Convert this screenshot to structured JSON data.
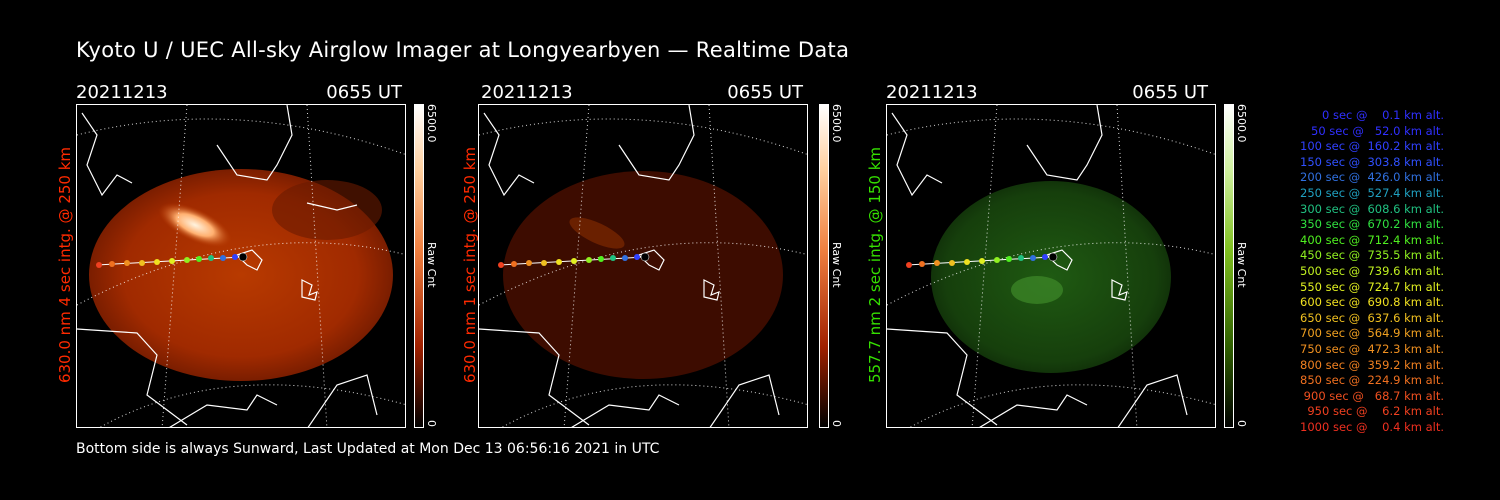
{
  "title": "Kyoto U / UEC All-sky Airglow Imager at Longyearbyen — Realtime Data",
  "panels": [
    {
      "date": "20211213",
      "time": "0655 UT",
      "side_label": "630.0 nm 4 sec intg. @ 250 km",
      "label_color": "#ff2a00",
      "cbar_max": "6500.0",
      "cbar_unit": "Raw Cnt",
      "cbar_min": "0",
      "image_tint": "#c43000",
      "image_intensity": "bright"
    },
    {
      "date": "20211213",
      "time": "0655 UT",
      "side_label": "630.0 nm 1 sec intg. @ 250 km",
      "label_color": "#ff2a00",
      "cbar_max": "6500.0",
      "cbar_unit": "Raw Cnt",
      "cbar_min": "0",
      "image_tint": "#4a0c00",
      "image_intensity": "dim"
    },
    {
      "date": "20211213",
      "time": "0655 UT",
      "side_label": "557.7 nm 2 sec intg. @ 150 km",
      "label_color": "#35e000",
      "cbar_max": "6500.0",
      "cbar_unit": "Raw Cnt",
      "cbar_min": "0",
      "image_tint": "#1a4a0a",
      "image_intensity": "dim"
    }
  ],
  "legend": [
    {
      "text": "   0 sec @    0.1 km alt.",
      "color": "#3030ff"
    },
    {
      "text": "  50 sec @   52.0 km alt.",
      "color": "#3030ff"
    },
    {
      "text": " 100 sec @  160.2 km alt.",
      "color": "#3040ff"
    },
    {
      "text": " 150 sec @  303.8 km alt.",
      "color": "#3050ff"
    },
    {
      "text": " 200 sec @  426.0 km alt.",
      "color": "#3070e0"
    },
    {
      "text": " 250 sec @  527.4 km alt.",
      "color": "#20a0c0"
    },
    {
      "text": " 300 sec @  608.6 km alt.",
      "color": "#20c080"
    },
    {
      "text": " 350 sec @  670.2 km alt.",
      "color": "#30e040"
    },
    {
      "text": " 400 sec @  712.4 km alt.",
      "color": "#50f020"
    },
    {
      "text": " 450 sec @  735.5 km alt.",
      "color": "#90f020"
    },
    {
      "text": " 500 sec @  739.6 km alt.",
      "color": "#c0f020"
    },
    {
      "text": " 550 sec @  724.7 km alt.",
      "color": "#e0f020"
    },
    {
      "text": " 600 sec @  690.8 km alt.",
      "color": "#f0e020"
    },
    {
      "text": " 650 sec @  637.6 km alt.",
      "color": "#f0c020"
    },
    {
      "text": " 700 sec @  564.9 km alt.",
      "color": "#f0a020"
    },
    {
      "text": " 750 sec @  472.3 km alt.",
      "color": "#f09020"
    },
    {
      "text": " 800 sec @  359.2 km alt.",
      "color": "#f08020"
    },
    {
      "text": " 850 sec @  224.9 km alt.",
      "color": "#f07020"
    },
    {
      "text": " 900 sec @   68.7 km alt.",
      "color": "#f05020"
    },
    {
      "text": " 950 sec @    6.2 km alt.",
      "color": "#f04020"
    },
    {
      "text": "1000 sec @    0.4 km alt.",
      "color": "#f03020"
    }
  ],
  "footer": "Bottom side is always Sunward, Last Updated at Mon Dec 13 06:56:16 2021 in UTC"
}
